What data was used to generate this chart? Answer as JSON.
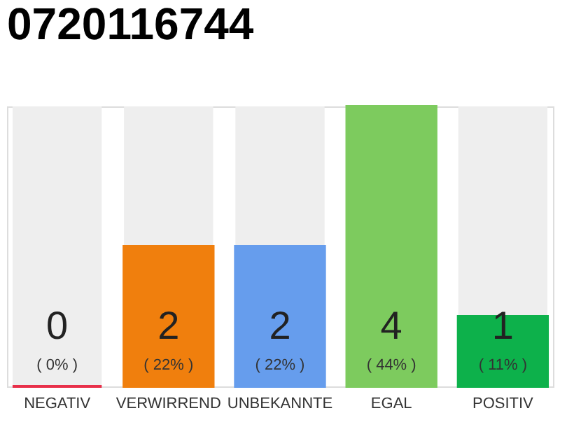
{
  "chart_data": {
    "type": "bar",
    "title": "0720116744",
    "categories": [
      "NEGATIV",
      "VERWIRREND",
      "UNBEKANNTE",
      "EGAL",
      "POSITIV"
    ],
    "values": [
      0,
      2,
      2,
      4,
      1
    ],
    "colors": [
      "#e8304a",
      "#f07f0d",
      "#669ded",
      "#7dcb5e",
      "#0db14b"
    ],
    "value_labels": [
      "0",
      "2",
      "2",
      "4",
      "1"
    ],
    "annotations": [
      "( 0% )",
      "( 22% )",
      "( 22% )",
      "( 44% )",
      "( 11% )"
    ]
  }
}
